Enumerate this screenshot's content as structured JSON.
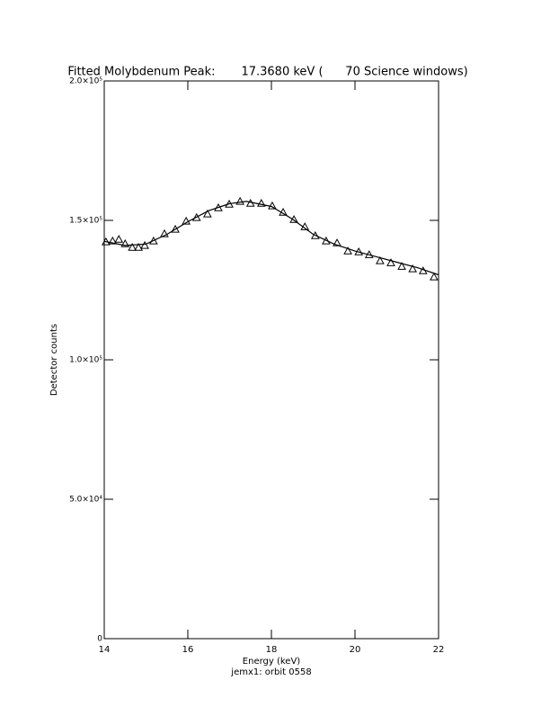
{
  "chart_data": {
    "type": "scatter",
    "title": "Fitted Molybdenum Peak:       17.3680 keV (      70 Science windows)",
    "x_label": "Energy (keV)",
    "subtitle": "jemx1: orbit 0558",
    "y_label": "Detector counts",
    "xlim": [
      14,
      22
    ],
    "xticks": [
      14,
      16,
      18,
      20,
      22
    ],
    "ylim": [
      0,
      200000
    ],
    "yticks": [
      0,
      {
        "value": 50000,
        "label": "5.0×10⁴"
      },
      {
        "value": 100000,
        "label": "1.0×10⁵"
      },
      {
        "value": 150000,
        "label": "1.5×10⁵"
      },
      {
        "value": 200000,
        "label": "2.0×10⁵"
      }
    ],
    "color": "#000000",
    "series": [
      {
        "mode": "markers",
        "marker": "triangle",
        "color": "#000000",
        "x": [
          14.04,
          14.2,
          14.35,
          14.5,
          14.67,
          14.82,
          14.97,
          15.18,
          15.44,
          15.7,
          15.96,
          16.21,
          16.47,
          16.73,
          16.99,
          17.25,
          17.5,
          17.76,
          18.02,
          18.28,
          18.54,
          18.8,
          19.05,
          19.31,
          19.57,
          19.83,
          20.09,
          20.34,
          20.6,
          20.86,
          21.12,
          21.38,
          21.63,
          21.89
        ],
        "values": [
          142300,
          142600,
          143200,
          141600,
          140300,
          140300,
          141000,
          142600,
          145200,
          146800,
          149700,
          151000,
          152300,
          154500,
          155800,
          156800,
          156100,
          156100,
          155200,
          152900,
          150300,
          147700,
          144500,
          142600,
          141900,
          139000,
          138700,
          137700,
          135500,
          134800,
          133500,
          132600,
          131900,
          129700
        ]
      },
      {
        "mode": "line",
        "color": "#000000",
        "x": [
          14,
          14.5,
          15,
          15.5,
          16,
          16.5,
          17,
          17.4,
          18,
          18.5,
          19,
          19.5,
          20,
          20.5,
          21,
          21.5,
          22
        ],
        "values": [
          142500,
          141000,
          141500,
          145000,
          149500,
          153500,
          156000,
          156800,
          155000,
          150500,
          145000,
          141500,
          139000,
          137000,
          135000,
          133000,
          130500
        ]
      }
    ]
  }
}
